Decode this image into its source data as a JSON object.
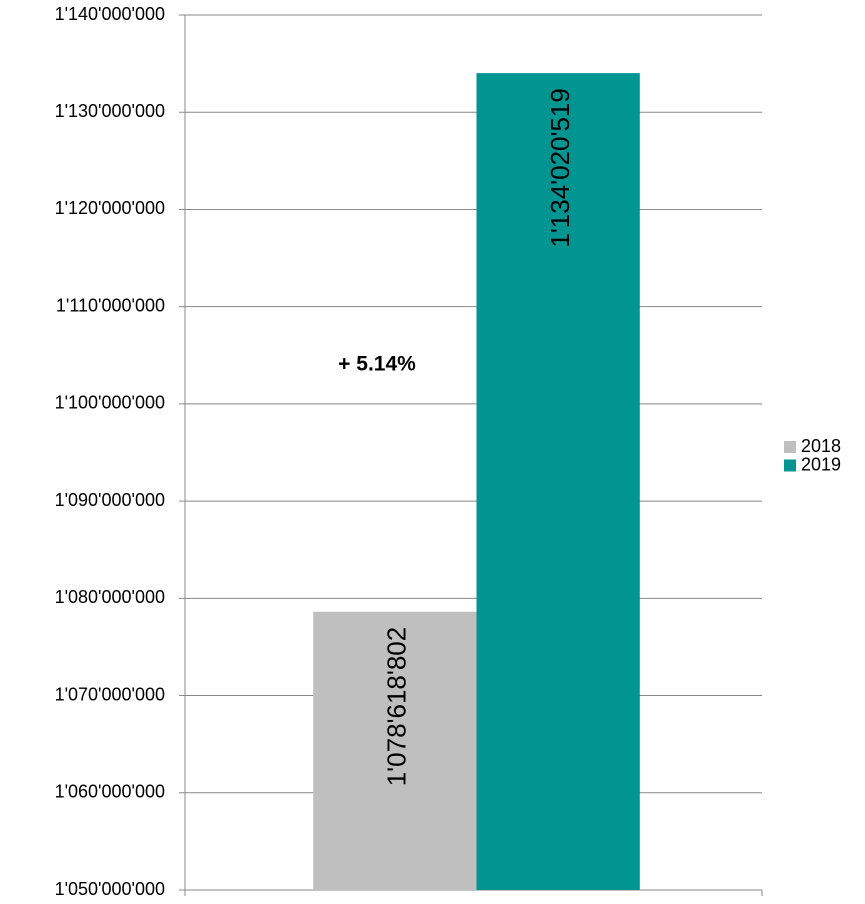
{
  "chart_data": {
    "type": "bar",
    "annotation": "+ 5.14%",
    "categories": [
      null
    ],
    "series": [
      {
        "name": "2018",
        "color": "#bfbfbf",
        "values": [
          1078618802
        ],
        "value_labels": [
          "1'078'618'802"
        ]
      },
      {
        "name": "2019",
        "color": "#009591",
        "values": [
          1134020519
        ],
        "value_labels": [
          "1'134'020'519"
        ]
      }
    ],
    "ylim": [
      1050000000,
      1140000000
    ],
    "yticks": [
      {
        "value": 1050000000,
        "label": "1'050'000'000"
      },
      {
        "value": 1060000000,
        "label": "1'060'000'000"
      },
      {
        "value": 1070000000,
        "label": "1'070'000'000"
      },
      {
        "value": 1080000000,
        "label": "1'080'000'000"
      },
      {
        "value": 1090000000,
        "label": "1'090'000'000"
      },
      {
        "value": 1100000000,
        "label": "1'100'000'000"
      },
      {
        "value": 1110000000,
        "label": "1'110'000'000"
      },
      {
        "value": 1120000000,
        "label": "1'120'000'000"
      },
      {
        "value": 1130000000,
        "label": "1'130'000'000"
      },
      {
        "value": 1140000000,
        "label": "1'140'000'000"
      }
    ],
    "grid": true,
    "legend": "right"
  }
}
